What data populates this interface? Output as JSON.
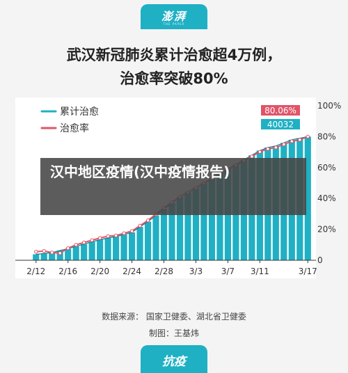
{
  "header": {
    "logo_text": "澎湃",
    "logo_sub": "THE PAPER"
  },
  "title_line1": "武汉新冠肺炎累计治愈超4万例，",
  "title_line2": "治愈率突破80%",
  "overlay_text": "汉中地区疫情(汉中疫情报告)",
  "source_line1": "数据来源： 国家卫健委、湖北省卫健委",
  "source_line2": "制图：王基炜",
  "footer_badge": "抗疫",
  "colors": {
    "bar": "#1fb0c4",
    "cumulative_line": "#1fb0c4",
    "rate_line": "#e05468",
    "axis": "#555555"
  },
  "chart_data": {
    "type": "bar",
    "legend_position": "top-left",
    "legend": [
      "累计治愈",
      "治愈率"
    ],
    "x_tick_labels": [
      "2/12",
      "2/16",
      "2/20",
      "2/24",
      "2/28",
      "3/3",
      "3/7",
      "3/11",
      "3/17"
    ],
    "y_tick_labels": [
      "0",
      "20%",
      "40%",
      "60%",
      "80%",
      "100%"
    ],
    "ylim": [
      0,
      100
    ],
    "series": [
      {
        "name": "累计治愈",
        "type": "bar+line",
        "dates": [
          "2/12",
          "2/13",
          "2/14",
          "2/15",
          "2/16",
          "2/17",
          "2/18",
          "2/19",
          "2/20",
          "2/21",
          "2/22",
          "2/23",
          "2/24",
          "2/25",
          "2/26",
          "2/27",
          "2/28",
          "2/29",
          "3/1",
          "3/2",
          "3/3",
          "3/4",
          "3/5",
          "3/6",
          "3/7",
          "3/8",
          "3/9",
          "3/10",
          "3/11",
          "3/12",
          "3/13",
          "3/14",
          "3/15",
          "3/16",
          "3/17"
        ],
        "values": [
          1917,
          2187,
          2497,
          3159,
          3754,
          4520,
          5217,
          5960,
          6654,
          7200,
          7660,
          8300,
          9000,
          10800,
          12500,
          14500,
          16500,
          18500,
          20500,
          22000,
          23500,
          25000,
          26500,
          28000,
          29500,
          31000,
          32500,
          34000,
          35500,
          36500,
          37000,
          38000,
          39000,
          39500,
          40032
        ]
      },
      {
        "name": "治愈率",
        "type": "line",
        "unit": "%",
        "values": [
          5.5,
          6.0,
          5.0,
          4.6,
          7.8,
          10.0,
          11.5,
          13.0,
          14.4,
          15.6,
          16.0,
          17.5,
          18.9,
          22.4,
          25.8,
          29.8,
          33.8,
          37.5,
          41.0,
          44.0,
          46.8,
          49.8,
          52.8,
          55.7,
          58.6,
          61.5,
          64.4,
          67.2,
          70.2,
          72.1,
          73.0,
          75.0,
          77.0,
          78.0,
          80.06
        ]
      }
    ],
    "value_labels": [
      "80.06%",
      "40032"
    ]
  }
}
